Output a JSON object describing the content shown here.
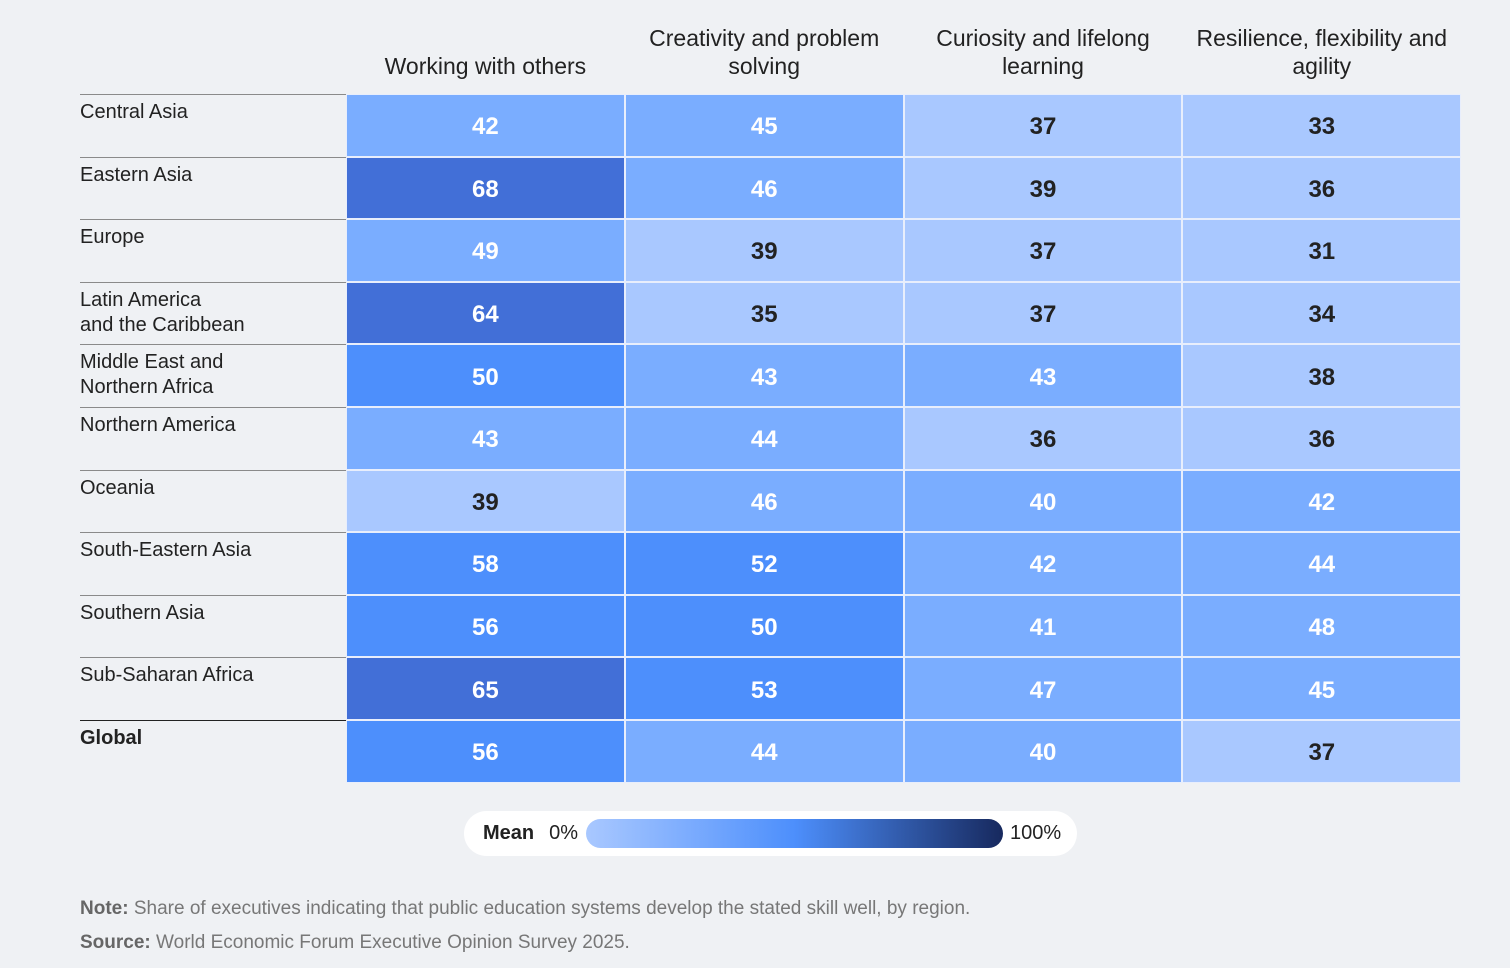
{
  "chart_data": {
    "type": "heatmap",
    "columns": [
      "Working with others",
      "Creativity and problem solving",
      "Curiosity and lifelong learning",
      "Resilience, flexibility and agility"
    ],
    "rows": [
      "Central Asia",
      "Eastern Asia",
      "Europe",
      "Latin America\nand the Caribbean",
      "Middle East and\nNorthern Africa",
      "Northern America",
      "Oceania",
      "South-Eastern Asia",
      "Southern Asia",
      "Sub-Saharan Africa",
      "Global"
    ],
    "values": [
      [
        42,
        45,
        37,
        33
      ],
      [
        68,
        46,
        39,
        36
      ],
      [
        49,
        39,
        37,
        31
      ],
      [
        64,
        35,
        37,
        34
      ],
      [
        50,
        43,
        43,
        38
      ],
      [
        43,
        44,
        36,
        36
      ],
      [
        39,
        46,
        40,
        42
      ],
      [
        58,
        52,
        42,
        44
      ],
      [
        56,
        50,
        41,
        48
      ],
      [
        65,
        53,
        47,
        45
      ],
      [
        56,
        44,
        40,
        37
      ]
    ],
    "color_steps": [
      {
        "min": 0,
        "color": "#a9c8ff",
        "text": "#222222"
      },
      {
        "min": 40,
        "color": "#7aadff",
        "text": "#ffffff"
      },
      {
        "min": 50,
        "color": "#4d8ffc",
        "text": "#ffffff"
      },
      {
        "min": 60,
        "color": "#426fd7",
        "text": "#ffffff"
      }
    ],
    "legend_title": "Mean",
    "colorlim": [
      0,
      100
    ],
    "colorticks": [
      {
        "value": 0,
        "label": "0%"
      },
      {
        "value": 100,
        "label": "100%"
      }
    ],
    "gradient": [
      "#a9c8ff",
      "#4d8ffc",
      "#17295e"
    ],
    "note_label": "Note:",
    "note": "Share of executives indicating that public education systems develop the stated skill well, by region.",
    "source_label": "Source:",
    "source": "World Economic Forum Executive Opinion Survey 2025."
  }
}
